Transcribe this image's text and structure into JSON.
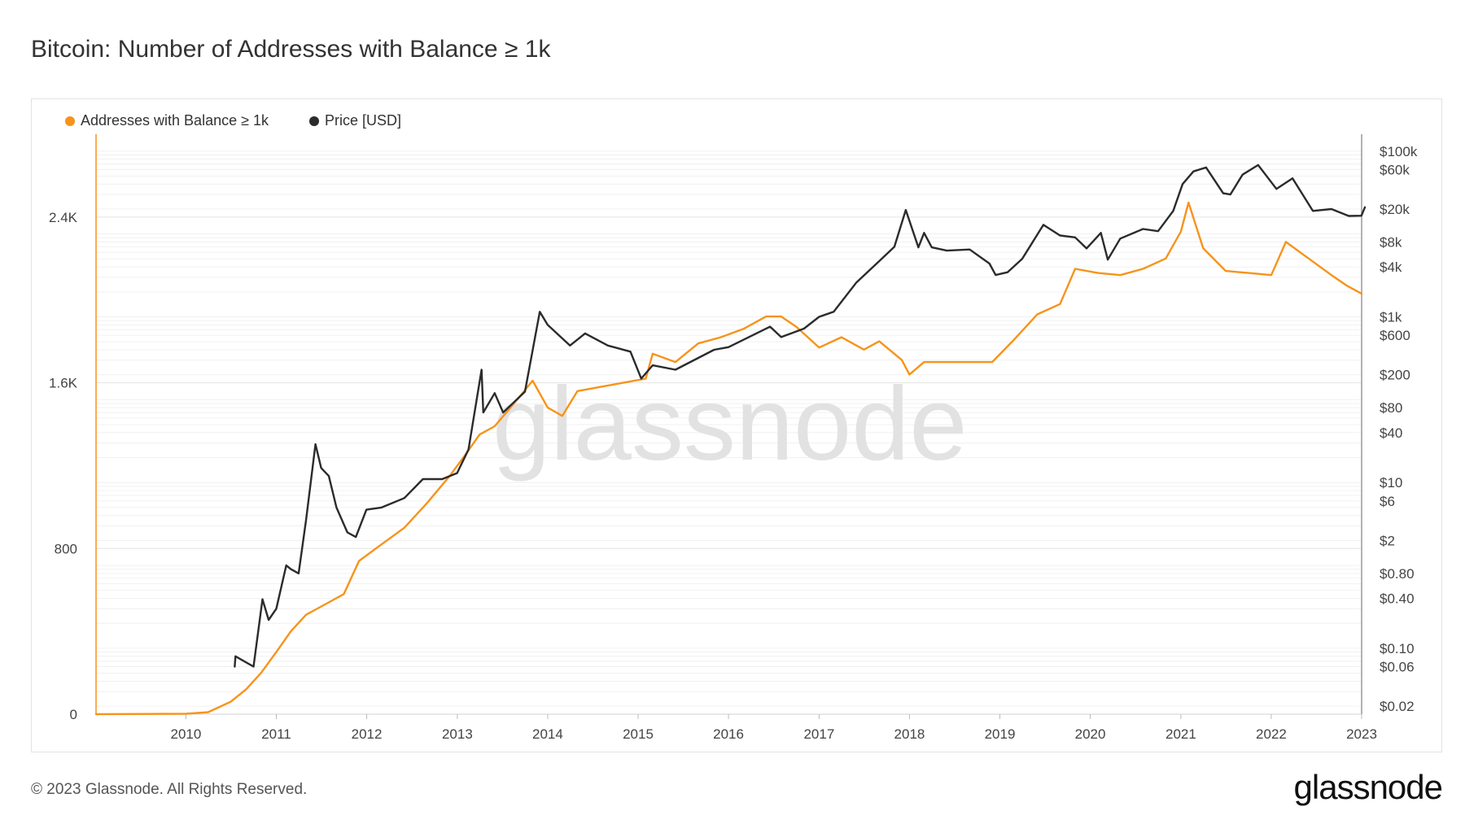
{
  "title": "Bitcoin: Number of Addresses with Balance ≥ 1k",
  "footer": "© 2023 Glassnode. All Rights Reserved.",
  "brand_logo": "glassnode",
  "watermark": "glassnode",
  "colors": {
    "addresses": "#f7931a",
    "price": "#2b2b2b",
    "grid": "#e8e8e8"
  },
  "chart_data": {
    "type": "line",
    "title": "Bitcoin: Number of Addresses with Balance ≥ 1k",
    "legend_position": "top-left",
    "grid": true,
    "x_ticks": [
      "2010",
      "2011",
      "2012",
      "2013",
      "2014",
      "2015",
      "2016",
      "2017",
      "2018",
      "2019",
      "2020",
      "2021",
      "2022",
      "2023"
    ],
    "y_left": {
      "ticks": [
        "0",
        "800",
        "1.6K",
        "2.4K"
      ],
      "tick_values": [
        0,
        800,
        1600,
        2400
      ],
      "range": [
        0,
        2800
      ]
    },
    "y_right": {
      "scale": "log",
      "ticks": [
        "$100k",
        "$60k",
        "$20k",
        "$8k",
        "$4k",
        "$1k",
        "$600",
        "$200",
        "$80",
        "$40",
        "$10",
        "$6",
        "$2",
        "$0.80",
        "$0.40",
        "$0.10",
        "$0.06",
        "$0.02"
      ],
      "tick_values": [
        100000,
        60000,
        20000,
        8000,
        4000,
        1000,
        600,
        200,
        80,
        40,
        10,
        6,
        2,
        0.8,
        0.4,
        0.1,
        0.06,
        0.02
      ],
      "range": [
        0.016,
        160000
      ]
    },
    "series": [
      {
        "name": "Addresses with Balance ≥ 1k",
        "axis": "left",
        "points": [
          [
            "2009-01-03",
            0
          ],
          [
            "2010-01-01",
            2
          ],
          [
            "2010-04-01",
            10
          ],
          [
            "2010-07-01",
            60
          ],
          [
            "2010-09-01",
            120
          ],
          [
            "2010-11-01",
            200
          ],
          [
            "2011-01-01",
            300
          ],
          [
            "2011-03-01",
            400
          ],
          [
            "2011-05-01",
            480
          ],
          [
            "2011-08-01",
            540
          ],
          [
            "2011-10-01",
            580
          ],
          [
            "2011-12-01",
            740
          ],
          [
            "2012-03-01",
            820
          ],
          [
            "2012-06-01",
            900
          ],
          [
            "2012-09-01",
            1020
          ],
          [
            "2012-12-01",
            1150
          ],
          [
            "2013-02-01",
            1250
          ],
          [
            "2013-04-01",
            1350
          ],
          [
            "2013-06-01",
            1390
          ],
          [
            "2013-09-01",
            1520
          ],
          [
            "2013-11-01",
            1610
          ],
          [
            "2014-01-01",
            1480
          ],
          [
            "2014-03-01",
            1440
          ],
          [
            "2014-05-01",
            1560
          ],
          [
            "2014-08-01",
            1580
          ],
          [
            "2014-11-01",
            1600
          ],
          [
            "2015-02-01",
            1620
          ],
          [
            "2015-03-01",
            1740
          ],
          [
            "2015-06-01",
            1700
          ],
          [
            "2015-09-01",
            1790
          ],
          [
            "2015-12-01",
            1820
          ],
          [
            "2016-03-01",
            1860
          ],
          [
            "2016-06-01",
            1920
          ],
          [
            "2016-08-01",
            1920
          ],
          [
            "2016-10-01",
            1870
          ],
          [
            "2017-01-01",
            1770
          ],
          [
            "2017-04-01",
            1820
          ],
          [
            "2017-07-01",
            1760
          ],
          [
            "2017-09-01",
            1800
          ],
          [
            "2017-12-01",
            1710
          ],
          [
            "2018-01-01",
            1640
          ],
          [
            "2018-03-01",
            1700
          ],
          [
            "2018-07-01",
            1700
          ],
          [
            "2018-12-01",
            1700
          ],
          [
            "2019-03-01",
            1810
          ],
          [
            "2019-06-01",
            1930
          ],
          [
            "2019-09-01",
            1980
          ],
          [
            "2019-11-01",
            2150
          ],
          [
            "2020-02-01",
            2130
          ],
          [
            "2020-05-01",
            2120
          ],
          [
            "2020-08-01",
            2150
          ],
          [
            "2020-11-01",
            2200
          ],
          [
            "2021-01-01",
            2330
          ],
          [
            "2021-02-01",
            2470
          ],
          [
            "2021-04-01",
            2250
          ],
          [
            "2021-07-01",
            2140
          ],
          [
            "2021-10-01",
            2130
          ],
          [
            "2022-01-01",
            2120
          ],
          [
            "2022-03-01",
            2280
          ],
          [
            "2022-06-01",
            2200
          ],
          [
            "2022-09-01",
            2120
          ],
          [
            "2022-11-01",
            2070
          ],
          [
            "2023-01-01",
            2030
          ]
        ]
      },
      {
        "name": "Price [USD]",
        "axis": "right",
        "points": [
          [
            "2010-07-17",
            0.06
          ],
          [
            "2010-07-20",
            0.08
          ],
          [
            "2010-10-01",
            0.06
          ],
          [
            "2010-11-06",
            0.39
          ],
          [
            "2010-12-01",
            0.22
          ],
          [
            "2011-01-01",
            0.3
          ],
          [
            "2011-02-10",
            1.0
          ],
          [
            "2011-03-01",
            0.9
          ],
          [
            "2011-04-01",
            0.8
          ],
          [
            "2011-05-01",
            3.5
          ],
          [
            "2011-06-08",
            29
          ],
          [
            "2011-07-01",
            15
          ],
          [
            "2011-08-01",
            12
          ],
          [
            "2011-09-01",
            5
          ],
          [
            "2011-10-15",
            2.5
          ],
          [
            "2011-11-18",
            2.2
          ],
          [
            "2011-12-31",
            4.7
          ],
          [
            "2012-03-01",
            5
          ],
          [
            "2012-06-01",
            6.5
          ],
          [
            "2012-08-15",
            11
          ],
          [
            "2012-11-01",
            11
          ],
          [
            "2012-12-31",
            13
          ],
          [
            "2013-02-15",
            25
          ],
          [
            "2013-04-09",
            230
          ],
          [
            "2013-04-16",
            70
          ],
          [
            "2013-06-01",
            120
          ],
          [
            "2013-07-05",
            70
          ],
          [
            "2013-10-01",
            125
          ],
          [
            "2013-11-30",
            1150
          ],
          [
            "2014-01-01",
            800
          ],
          [
            "2014-04-01",
            450
          ],
          [
            "2014-06-01",
            630
          ],
          [
            "2014-09-01",
            450
          ],
          [
            "2014-12-01",
            380
          ],
          [
            "2015-01-14",
            180
          ],
          [
            "2015-03-01",
            260
          ],
          [
            "2015-06-01",
            230
          ],
          [
            "2015-11-04",
            400
          ],
          [
            "2016-01-01",
            430
          ],
          [
            "2016-06-17",
            760
          ],
          [
            "2016-08-01",
            570
          ],
          [
            "2016-11-01",
            720
          ],
          [
            "2017-01-01",
            1000
          ],
          [
            "2017-03-01",
            1150
          ],
          [
            "2017-06-01",
            2600
          ],
          [
            "2017-09-01",
            4700
          ],
          [
            "2017-11-01",
            7000
          ],
          [
            "2017-12-17",
            19500
          ],
          [
            "2018-02-06",
            6900
          ],
          [
            "2018-03-01",
            10300
          ],
          [
            "2018-04-01",
            6900
          ],
          [
            "2018-06-01",
            6300
          ],
          [
            "2018-09-01",
            6500
          ],
          [
            "2018-11-20",
            4400
          ],
          [
            "2018-12-15",
            3200
          ],
          [
            "2019-02-01",
            3450
          ],
          [
            "2019-04-01",
            5000
          ],
          [
            "2019-06-26",
            12900
          ],
          [
            "2019-09-01",
            9600
          ],
          [
            "2019-11-01",
            9100
          ],
          [
            "2019-12-17",
            6700
          ],
          [
            "2020-02-13",
            10300
          ],
          [
            "2020-03-12",
            4900
          ],
          [
            "2020-05-01",
            8800
          ],
          [
            "2020-08-01",
            11500
          ],
          [
            "2020-10-01",
            10800
          ],
          [
            "2020-12-01",
            19000
          ],
          [
            "2021-01-08",
            40000
          ],
          [
            "2021-02-21",
            57000
          ],
          [
            "2021-04-13",
            63500
          ],
          [
            "2021-06-21",
            31000
          ],
          [
            "2021-07-20",
            30000
          ],
          [
            "2021-09-07",
            52000
          ],
          [
            "2021-11-09",
            68000
          ],
          [
            "2022-01-22",
            35000
          ],
          [
            "2022-03-28",
            47000
          ],
          [
            "2022-06-18",
            19000
          ],
          [
            "2022-09-01",
            20000
          ],
          [
            "2022-11-10",
            16500
          ],
          [
            "2022-12-31",
            16600
          ],
          [
            "2023-01-14",
            21000
          ]
        ]
      }
    ]
  }
}
